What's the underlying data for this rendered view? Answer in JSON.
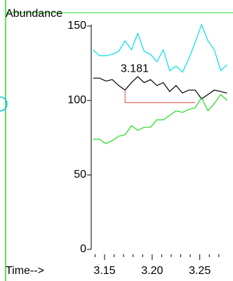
{
  "chart_data": {
    "type": "line",
    "ylabel": "Abundance",
    "xlabel": "Time-->",
    "x": [
      3.138,
      3.1447,
      3.1514,
      3.1581,
      3.1648,
      3.1715,
      3.1782,
      3.1849,
      3.1916,
      3.1983,
      3.205,
      3.2117,
      3.2184,
      3.2251,
      3.2318,
      3.2385,
      3.2452,
      3.2519,
      3.2586,
      3.2653,
      3.272,
      3.2787
    ],
    "series": [
      {
        "color": "#00e0e8",
        "values": [
          134,
          130,
          130,
          131,
          133,
          140,
          134,
          145,
          133,
          131,
          126,
          134,
          120,
          123,
          119,
          128,
          139,
          151,
          140,
          134,
          120,
          124
        ]
      },
      {
        "color": "#000000",
        "values": [
          115,
          115,
          113,
          114,
          110,
          107,
          112,
          116,
          112,
          114,
          110,
          112,
          106,
          110,
          105,
          107,
          107,
          101,
          104,
          107,
          106,
          105
        ]
      },
      {
        "color": "#22dd22",
        "values": [
          74,
          74,
          71,
          73,
          76,
          77,
          83,
          80,
          82,
          82,
          87,
          87,
          90,
          93,
          92,
          94,
          95,
          102,
          93,
          98,
          104,
          100
        ]
      }
    ],
    "baseline": {
      "color": "#e06060",
      "x": [
        3.1715,
        3.1715,
        3.2452
      ],
      "values": [
        107,
        98.6,
        98.6
      ]
    },
    "annotations": [
      {
        "text": "3.181",
        "x": 3.1816,
        "y": 121
      }
    ],
    "xlim": [
      3.136,
      3.279
    ],
    "xticks": [
      {
        "value": 3.15,
        "label": "3.15"
      },
      {
        "value": 3.2,
        "label": "3.20"
      },
      {
        "value": 3.25,
        "label": "3.25"
      }
    ],
    "xminorticks": [
      3.14,
      3.16,
      3.17,
      3.18,
      3.19,
      3.21,
      3.22,
      3.23,
      3.24,
      3.26,
      3.27
    ],
    "ylim": [
      0,
      150
    ],
    "yticks": [
      0,
      50,
      100,
      150
    ]
  }
}
